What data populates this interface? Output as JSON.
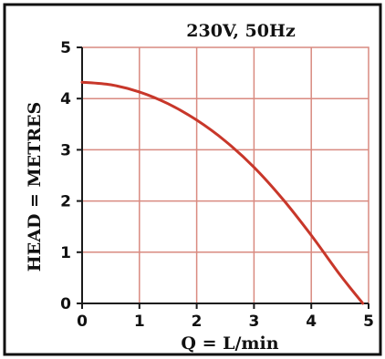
{
  "chart_data": {
    "type": "line",
    "title": "230V, 50Hz",
    "xlabel": "Q = L/min",
    "ylabel": "HEAD = METRES",
    "xlim": [
      0,
      5
    ],
    "ylim": [
      0,
      5
    ],
    "x_ticks": [
      "0",
      "1",
      "2",
      "3",
      "4",
      "5"
    ],
    "y_ticks": [
      "0",
      "1",
      "2",
      "3",
      "4",
      "5"
    ],
    "grid": true,
    "grid_color": "#d98a80",
    "line_color": "#c8372a",
    "series": [
      {
        "x": [
          0,
          0.5,
          1,
          1.5,
          2,
          2.5,
          3,
          3.5,
          4,
          4.5,
          4.9
        ],
        "y": [
          4.32,
          4.27,
          4.13,
          3.9,
          3.58,
          3.17,
          2.66,
          2.04,
          1.33,
          0.56,
          0
        ]
      }
    ]
  }
}
